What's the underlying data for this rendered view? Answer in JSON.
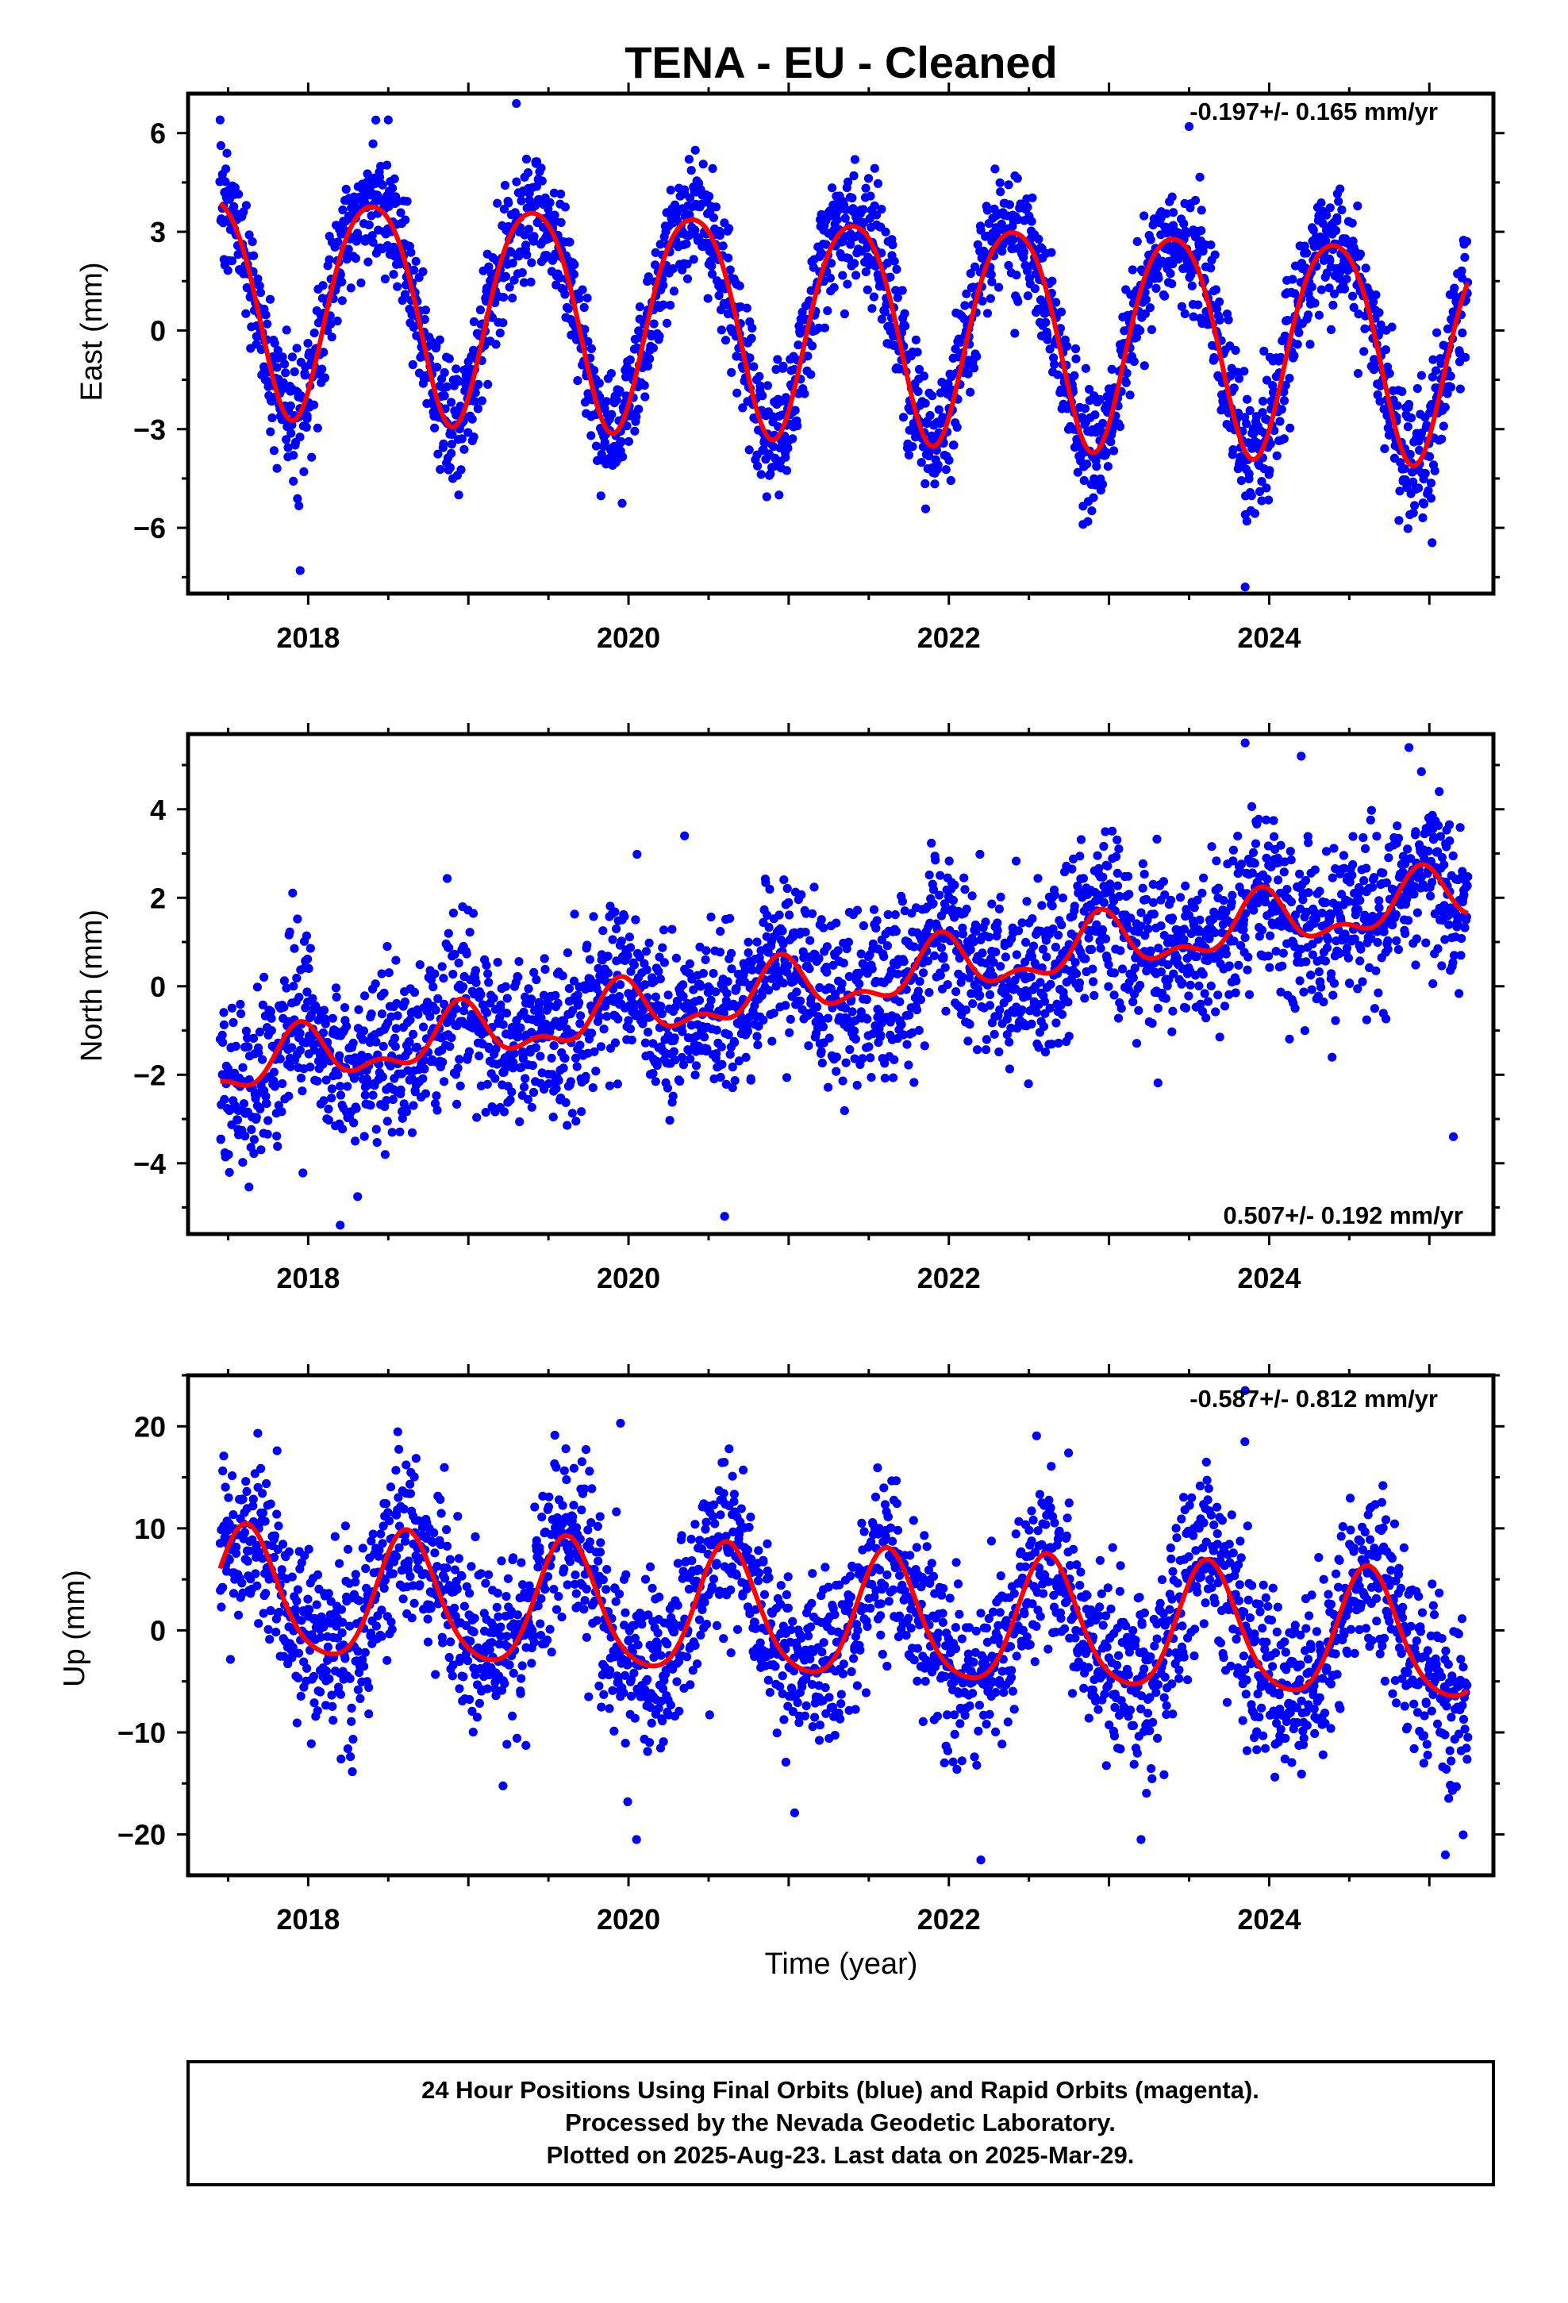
{
  "figure": {
    "title": "TENA  - EU - Cleaned",
    "xlabel": "Time (year)",
    "caption": [
      "24 Hour Positions Using Final Orbits (blue) and Rapid Orbits (magenta).",
      "Processed by the Nevada Geodetic Laboratory.",
      "Plotted on 2025-Aug-23. Last data on 2025-Mar-29."
    ]
  },
  "colors": {
    "points": "#0000ff",
    "fit": "#ff0000",
    "frame": "#000000"
  },
  "chart_data": [
    {
      "type": "scatter",
      "ylabel": "East (mm)",
      "rate_text": "-0.197+/- 0.165 mm/yr",
      "rate_position": "top-right",
      "xlim": [
        2017.25,
        2025.4
      ],
      "ylim": [
        -8,
        7.2
      ],
      "xticks": [
        2018,
        2020,
        2022,
        2024
      ],
      "yticks": [
        -6,
        -3,
        0,
        3,
        6
      ],
      "ytick_labels": [
        "−6",
        "−3",
        "0",
        "3",
        "6"
      ],
      "series": [
        {
          "type": "scatter",
          "color": "#0000ff",
          "start": 2017.45,
          "end": 2025.24,
          "count": 2600,
          "model": {
            "ref": 2021.0,
            "offset": 0.35,
            "rate": -0.197,
            "annual_amp": 3.3,
            "annual_phase_yr": 0.4,
            "semiannual_amp": 0.4,
            "semiannual_phase_yr": 0.15,
            "noise_sd": 0.95
          },
          "outliers": [
            [
              2017.95,
              -7.3
            ],
            [
              2023.85,
              -7.8
            ],
            [
              2017.45,
              6.4
            ],
            [
              2018.5,
              6.4
            ],
            [
              2019.3,
              6.9
            ],
            [
              2023.5,
              6.2
            ]
          ]
        }
      ],
      "fit": {
        "type": "line",
        "color": "#ff0000",
        "start": 2017.45,
        "end": 2025.24,
        "model": {
          "ref": 2021.0,
          "offset": 0.35,
          "rate": -0.197,
          "annual_amp": 3.3,
          "annual_phase_yr": 0.4,
          "semiannual_amp": 0.4,
          "semiannual_phase_yr": 0.15
        }
      }
    },
    {
      "type": "scatter",
      "ylabel": "North (mm)",
      "rate_text": "0.507+/- 0.192 mm/yr",
      "rate_position": "bottom-right",
      "xlim": [
        2017.25,
        2025.4
      ],
      "ylim": [
        -5.6,
        5.7
      ],
      "xticks": [
        2018,
        2020,
        2022,
        2024
      ],
      "yticks": [
        -4,
        -2,
        0,
        2,
        4
      ],
      "ytick_labels": [
        "−4",
        "−2",
        "0",
        "2",
        "4"
      ],
      "series": [
        {
          "type": "scatter",
          "color": "#0000ff",
          "start": 2017.45,
          "end": 2025.24,
          "count": 2600,
          "model": {
            "ref": 2021.0,
            "offset": -0.1,
            "rate": 0.507,
            "annual_amp": 0.55,
            "annual_phase_yr": 0.95,
            "semiannual_amp": 0.3,
            "semiannual_phase_yr": 0.45,
            "noise_sd": 0.95
          },
          "outliers": [
            [
              2018.2,
              -5.4
            ],
            [
              2020.6,
              -5.2
            ],
            [
              2020.35,
              3.4
            ],
            [
              2023.85,
              5.5
            ],
            [
              2024.2,
              5.2
            ],
            [
              2025.15,
              -3.4
            ]
          ]
        }
      ],
      "fit": {
        "type": "line",
        "color": "#ff0000",
        "start": 2017.45,
        "end": 2025.24,
        "model": {
          "ref": 2021.0,
          "offset": -0.1,
          "rate": 0.507,
          "annual_amp": 0.55,
          "annual_phase_yr": 0.95,
          "semiannual_amp": 0.3,
          "semiannual_phase_yr": 0.45
        }
      }
    },
    {
      "type": "scatter",
      "ylabel": "Up (mm)",
      "rate_text": "-0.587+/- 0.812 mm/yr",
      "rate_position": "top-right",
      "xlim": [
        2017.25,
        2025.4
      ],
      "ylim": [
        -24,
        25
      ],
      "xticks": [
        2018,
        2020,
        2022,
        2024
      ],
      "yticks": [
        -20,
        -10,
        0,
        10,
        20
      ],
      "ytick_labels": [
        "−20",
        "−10",
        "0",
        "10",
        "20"
      ],
      "series": [
        {
          "type": "scatter",
          "color": "#0000ff",
          "start": 2017.45,
          "end": 2025.24,
          "count": 2600,
          "model": {
            "ref": 2021.0,
            "offset": 1.3,
            "rate": -0.587,
            "annual_amp": 6.2,
            "annual_phase_yr": 0.62,
            "semiannual_amp": 1.0,
            "semiannual_phase_yr": 0.1,
            "noise_sd": 4.3
          },
          "outliers": [
            [
              2019.95,
              20.3
            ],
            [
              2023.85,
              23.5
            ],
            [
              2022.2,
              -22.5
            ],
            [
              2023.2,
              -20.5
            ],
            [
              2025.1,
              -22.0
            ],
            [
              2020.05,
              -20.5
            ]
          ]
        }
      ],
      "fit": {
        "type": "line",
        "color": "#ff0000",
        "start": 2017.45,
        "end": 2025.24,
        "model": {
          "ref": 2021.0,
          "offset": 1.3,
          "rate": -0.587,
          "annual_amp": 6.2,
          "annual_phase_yr": 0.62,
          "semiannual_amp": 1.0,
          "semiannual_phase_yr": 0.1
        }
      }
    }
  ]
}
